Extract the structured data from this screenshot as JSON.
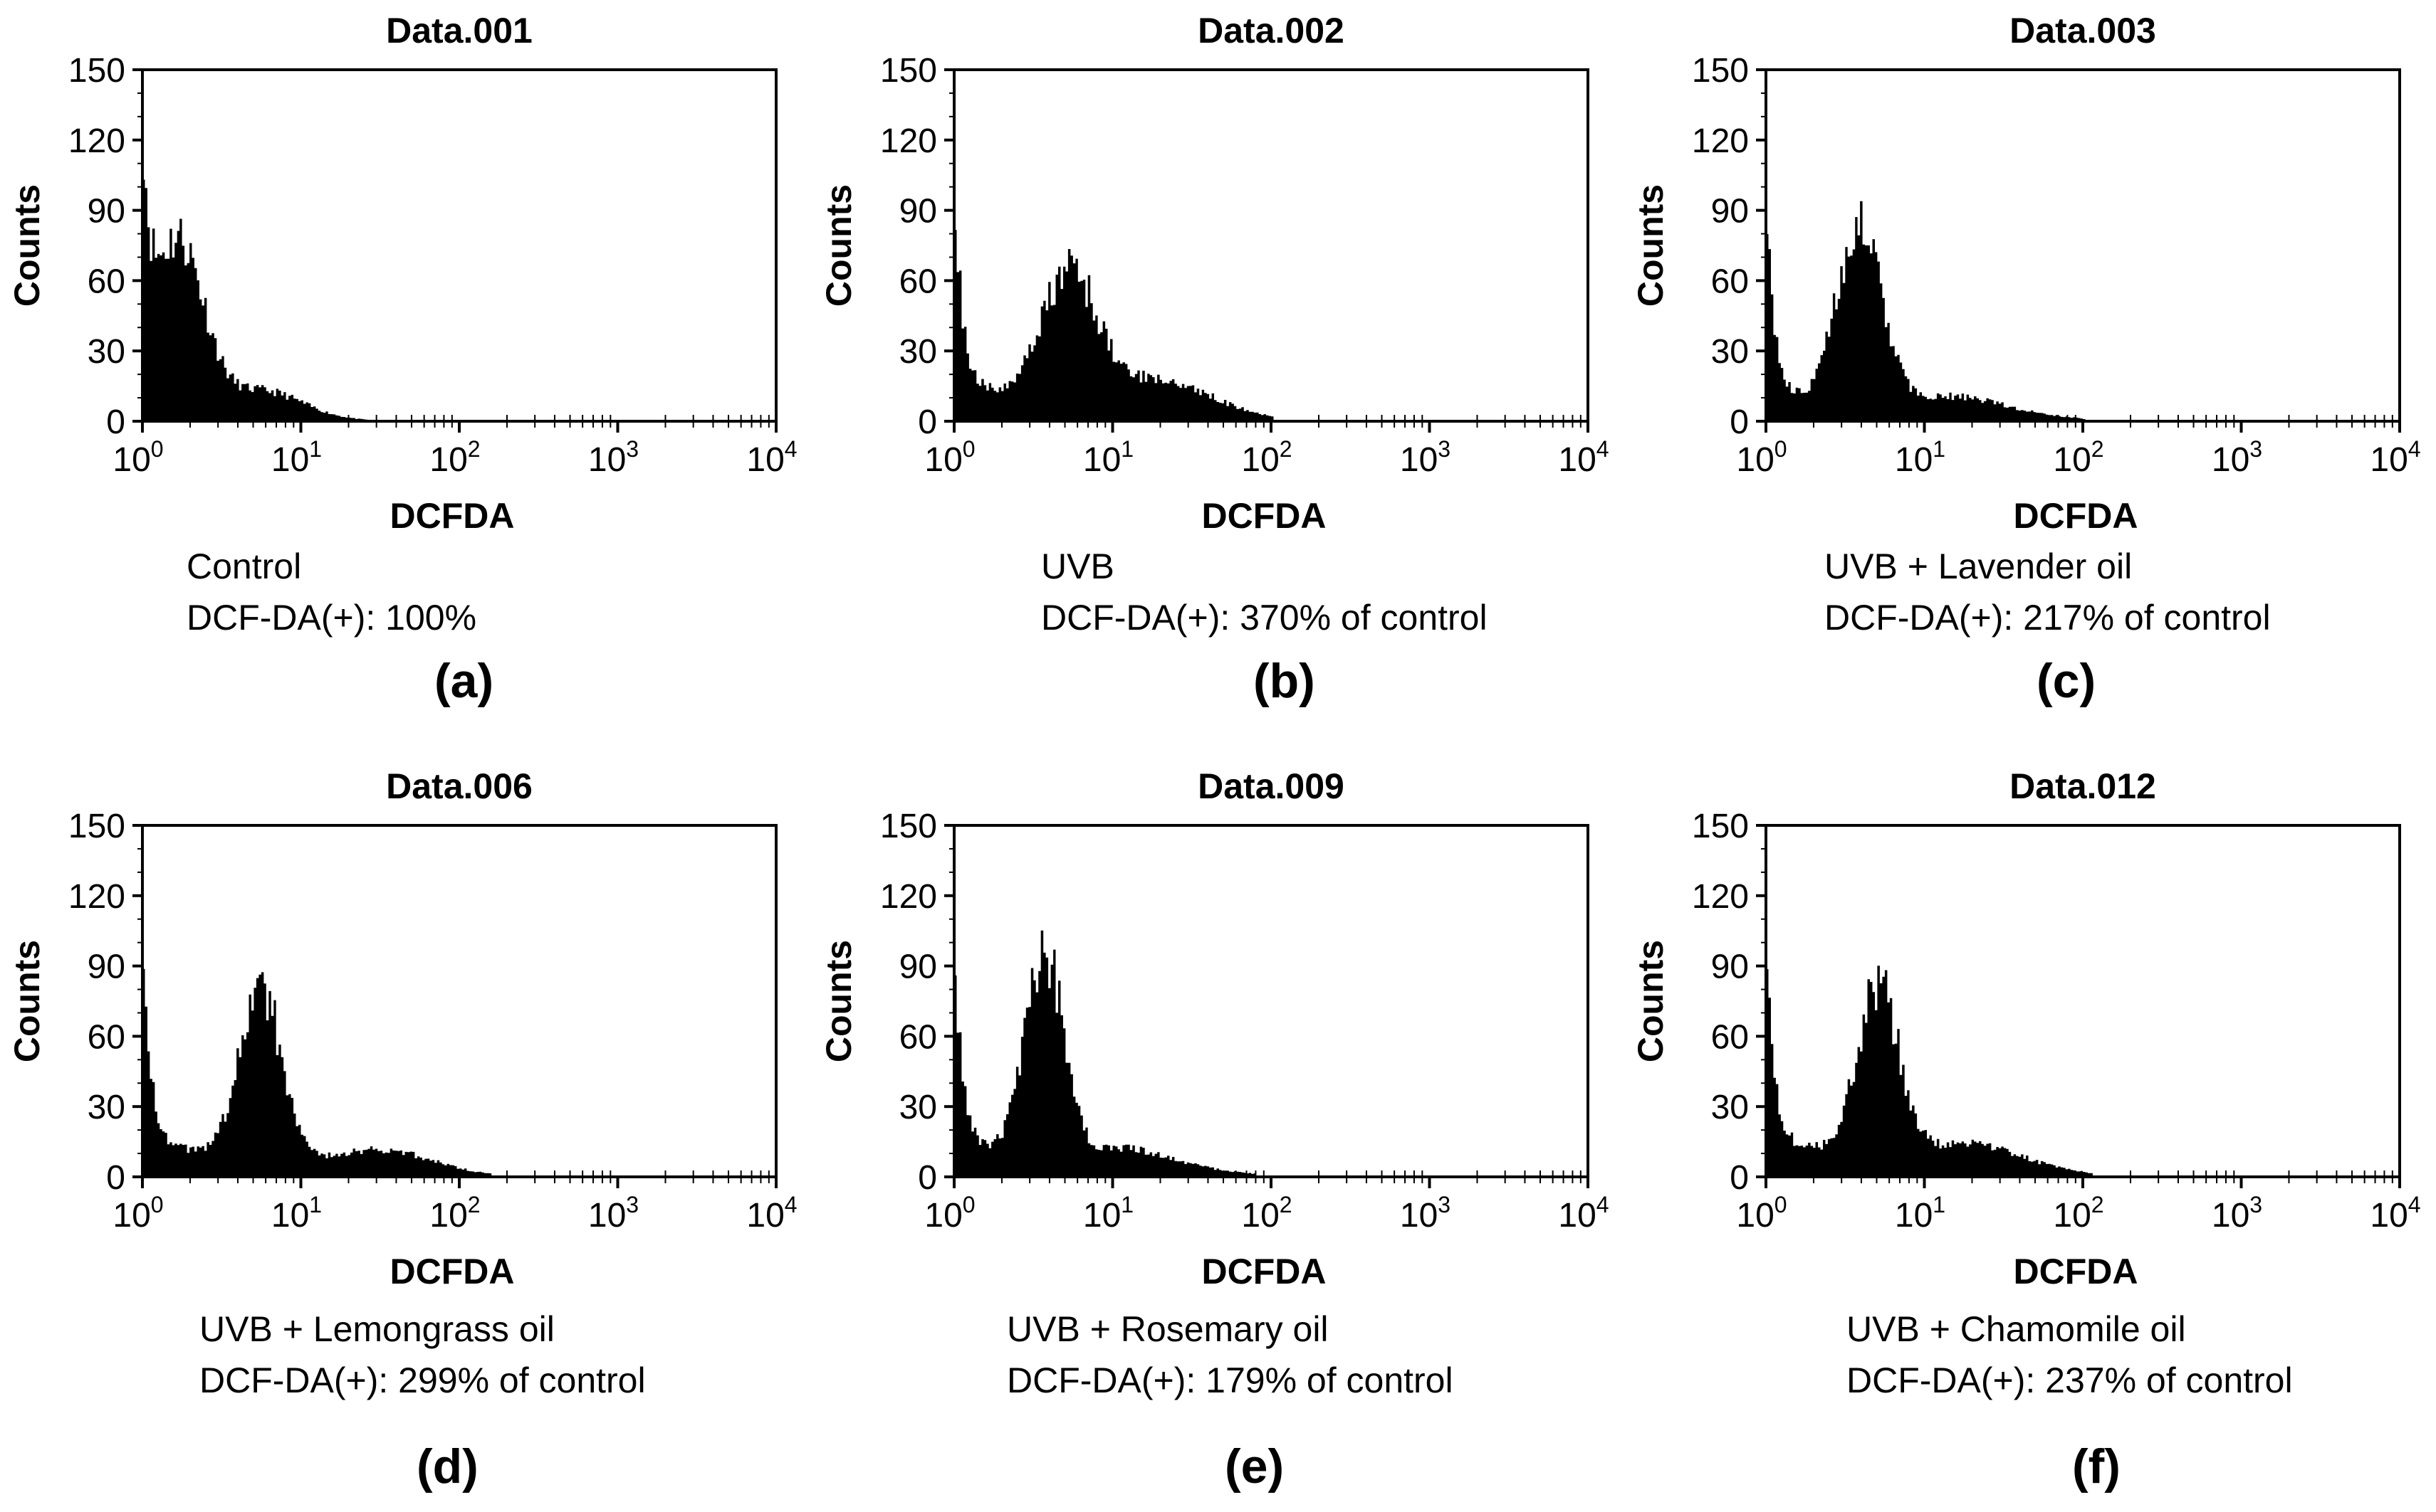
{
  "chart_data": [
    {
      "type": "histogram",
      "title": "Data.001",
      "xlabel": "DCFDA",
      "ylabel": "Counts",
      "xscale": "log",
      "xlim": [
        1,
        10000
      ],
      "ylim": [
        0,
        150
      ],
      "yticks": [
        "0",
        "30",
        "60",
        "90",
        "120",
        "150"
      ],
      "xticks": [
        {
          "base": "10",
          "exp": "0"
        },
        {
          "base": "10",
          "exp": "1"
        },
        {
          "base": "10",
          "exp": "2"
        },
        {
          "base": "10",
          "exp": "3"
        },
        {
          "base": "10",
          "exp": "4"
        }
      ],
      "condition": "Control",
      "result": "DCF-DA(+): 100%",
      "panel_letter": "(a)",
      "histogram": {
        "start": 90,
        "baseline": 2,
        "peaks": [
          {
            "center_decade": 0.22,
            "height": 75,
            "width": 0.16
          },
          {
            "center_decade": 0.75,
            "height": 12,
            "width": 0.25
          }
        ],
        "max_decade": 1.45
      }
    },
    {
      "type": "histogram",
      "title": "Data.002",
      "xlabel": "DCFDA",
      "ylabel": "Counts",
      "xscale": "log",
      "xlim": [
        1,
        10000
      ],
      "ylim": [
        0,
        150
      ],
      "yticks": [
        "0",
        "30",
        "60",
        "90",
        "120",
        "150"
      ],
      "xticks": [
        {
          "base": "10",
          "exp": "0"
        },
        {
          "base": "10",
          "exp": "1"
        },
        {
          "base": "10",
          "exp": "2"
        },
        {
          "base": "10",
          "exp": "3"
        },
        {
          "base": "10",
          "exp": "4"
        }
      ],
      "condition": "UVB",
      "result": "DCF-DA(+): 370% of control",
      "panel_letter": "(b)",
      "histogram": {
        "start": 80,
        "baseline": 14,
        "peaks": [
          {
            "center_decade": 0.72,
            "height": 55,
            "width": 0.17
          },
          {
            "center_decade": 1.3,
            "height": 12,
            "width": 0.3
          }
        ],
        "max_decade": 2.0
      }
    },
    {
      "type": "histogram",
      "title": "Data.003",
      "xlabel": "DCFDA",
      "ylabel": "Counts",
      "xscale": "log",
      "xlim": [
        1,
        10000
      ],
      "ylim": [
        0,
        150
      ],
      "yticks": [
        "0",
        "30",
        "60",
        "90",
        "120",
        "150"
      ],
      "xticks": [
        {
          "base": "10",
          "exp": "0"
        },
        {
          "base": "10",
          "exp": "1"
        },
        {
          "base": "10",
          "exp": "2"
        },
        {
          "base": "10",
          "exp": "3"
        },
        {
          "base": "10",
          "exp": "4"
        }
      ],
      "condition": "UVB + Lavender oil",
      "result": "DCF-DA(+): 217% of control",
      "panel_letter": "(c)",
      "histogram": {
        "start": 80,
        "baseline": 10,
        "peaks": [
          {
            "center_decade": 0.58,
            "height": 75,
            "width": 0.14
          },
          {
            "center_decade": 1.2,
            "height": 6,
            "width": 0.3
          }
        ],
        "max_decade": 2.0
      }
    },
    {
      "type": "histogram",
      "title": "Data.006",
      "xlabel": "DCFDA",
      "ylabel": "Counts",
      "xscale": "log",
      "xlim": [
        1,
        10000
      ],
      "ylim": [
        0,
        150
      ],
      "yticks": [
        "0",
        "30",
        "60",
        "90",
        "120",
        "150"
      ],
      "xticks": [
        {
          "base": "10",
          "exp": "0"
        },
        {
          "base": "10",
          "exp": "1"
        },
        {
          "base": "10",
          "exp": "2"
        },
        {
          "base": "10",
          "exp": "3"
        },
        {
          "base": "10",
          "exp": "4"
        }
      ],
      "condition": "UVB + Lemongrass oil",
      "result": "DCF-DA(+): 299% of control",
      "panel_letter": "(d)",
      "histogram": {
        "start": 85,
        "baseline": 13,
        "peaks": [
          {
            "center_decade": 0.74,
            "height": 72,
            "width": 0.13
          },
          {
            "center_decade": 1.55,
            "height": 7,
            "width": 0.25
          }
        ],
        "max_decade": 2.2
      }
    },
    {
      "type": "histogram",
      "title": "Data.009",
      "xlabel": "DCFDA",
      "ylabel": "Counts",
      "xscale": "log",
      "xlim": [
        1,
        10000
      ],
      "ylim": [
        0,
        150
      ],
      "yticks": [
        "0",
        "30",
        "60",
        "90",
        "120",
        "150"
      ],
      "xticks": [
        {
          "base": "10",
          "exp": "0"
        },
        {
          "base": "10",
          "exp": "1"
        },
        {
          "base": "10",
          "exp": "2"
        },
        {
          "base": "10",
          "exp": "3"
        },
        {
          "base": "10",
          "exp": "4"
        }
      ],
      "condition": "UVB + Rosemary oil",
      "result": "DCF-DA(+): 179% of control",
      "panel_letter": "(e)",
      "histogram": {
        "start": 80,
        "baseline": 13,
        "peaks": [
          {
            "center_decade": 0.56,
            "height": 88,
            "width": 0.12
          },
          {
            "center_decade": 1.1,
            "height": 6,
            "width": 0.25
          }
        ],
        "max_decade": 1.9
      }
    },
    {
      "type": "histogram",
      "title": "Data.012",
      "xlabel": "DCFDA",
      "ylabel": "Counts",
      "xscale": "log",
      "xlim": [
        1,
        10000
      ],
      "ylim": [
        0,
        150
      ],
      "yticks": [
        "0",
        "30",
        "60",
        "90",
        "120",
        "150"
      ],
      "xticks": [
        {
          "base": "10",
          "exp": "0"
        },
        {
          "base": "10",
          "exp": "1"
        },
        {
          "base": "10",
          "exp": "2"
        },
        {
          "base": "10",
          "exp": "3"
        },
        {
          "base": "10",
          "exp": "4"
        }
      ],
      "condition": "UVB + Chamomile oil",
      "result": "DCF-DA(+): 237% of control",
      "panel_letter": "(f)",
      "histogram": {
        "start": 80,
        "baseline": 14,
        "peaks": [
          {
            "center_decade": 0.7,
            "height": 72,
            "width": 0.13
          },
          {
            "center_decade": 1.3,
            "height": 8,
            "width": 0.3
          }
        ],
        "max_decade": 2.05
      }
    }
  ]
}
